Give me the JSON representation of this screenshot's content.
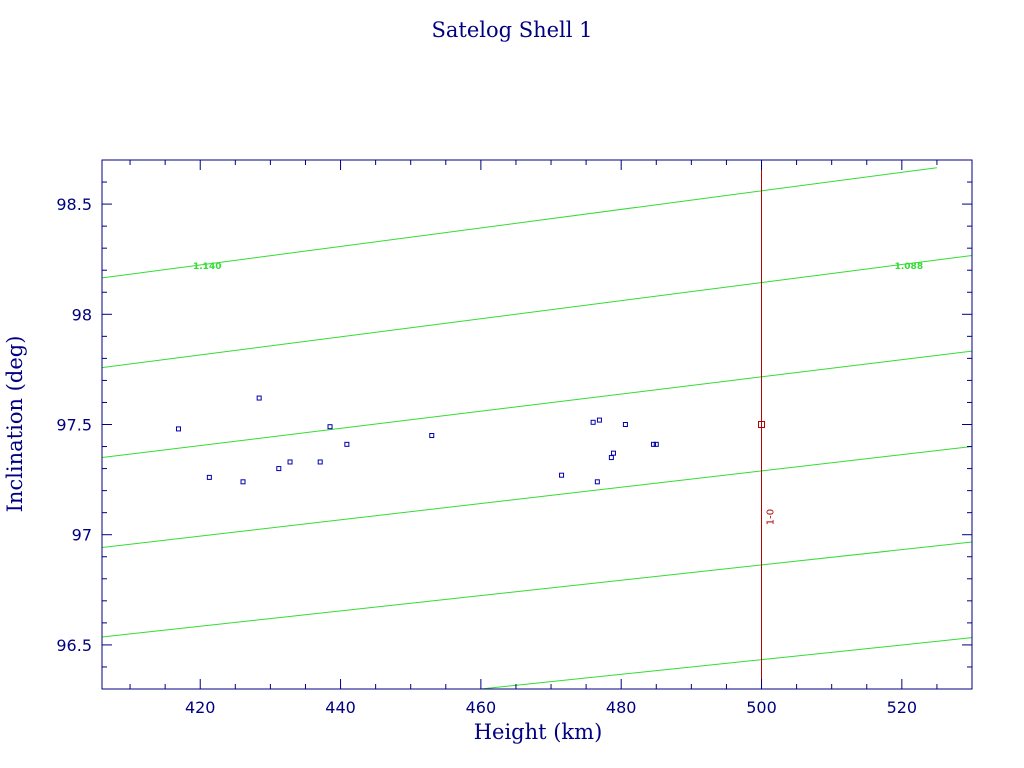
{
  "colors": {
    "axis": "#000080",
    "text": "#000080",
    "contour": "#33dd33",
    "points": "#0000aa",
    "reference": "#b00000"
  },
  "chart_data": {
    "type": "scatter",
    "title": "Satelog Shell 1",
    "xlabel": "Height (km)",
    "ylabel": "Inclination (deg)",
    "xlim": [
      406,
      530
    ],
    "ylim": [
      96.3,
      98.7
    ],
    "xticks": [
      420,
      440,
      460,
      480,
      500,
      520
    ],
    "yticks": [
      96.5,
      97,
      97.5,
      98,
      98.5
    ],
    "xtick_labels": [
      "420",
      "440",
      "460",
      "480",
      "500",
      "520"
    ],
    "ytick_labels": [
      "96.5",
      "97",
      "97.5",
      "98",
      "98.5"
    ],
    "grid": false,
    "points": [
      {
        "x": 416.9,
        "y": 97.48
      },
      {
        "x": 421.3,
        "y": 97.26
      },
      {
        "x": 426.1,
        "y": 97.24
      },
      {
        "x": 428.4,
        "y": 97.62
      },
      {
        "x": 431.2,
        "y": 97.3
      },
      {
        "x": 432.8,
        "y": 97.33
      },
      {
        "x": 437.1,
        "y": 97.33
      },
      {
        "x": 438.5,
        "y": 97.49
      },
      {
        "x": 440.9,
        "y": 97.41
      },
      {
        "x": 453.0,
        "y": 97.45
      },
      {
        "x": 471.5,
        "y": 97.27
      },
      {
        "x": 476.0,
        "y": 97.51
      },
      {
        "x": 476.6,
        "y": 97.24
      },
      {
        "x": 476.9,
        "y": 97.52
      },
      {
        "x": 478.6,
        "y": 97.35
      },
      {
        "x": 478.9,
        "y": 97.37
      },
      {
        "x": 480.6,
        "y": 97.5
      },
      {
        "x": 484.6,
        "y": 97.41
      },
      {
        "x": 485.0,
        "y": 97.41
      }
    ],
    "contours": [
      {
        "x": [
          406,
          525
        ],
        "y": [
          98.165,
          98.665
        ]
      },
      {
        "x": [
          406,
          530
        ],
        "y": [
          97.758,
          98.267
        ]
      },
      {
        "x": [
          406,
          530
        ],
        "y": [
          97.35,
          97.833
        ]
      },
      {
        "x": [
          406,
          530
        ],
        "y": [
          96.942,
          97.4
        ]
      },
      {
        "x": [
          406,
          530
        ],
        "y": [
          96.536,
          96.967
        ]
      },
      {
        "x": [
          460,
          530
        ],
        "y": [
          96.3,
          96.533
        ]
      }
    ],
    "contour_labels": [
      {
        "text": "1.140",
        "x": 421.0,
        "y": 98.22
      },
      {
        "text": "1.088",
        "x": 521.0,
        "y": 98.22
      }
    ],
    "reference": {
      "x": 500,
      "marker": {
        "x": 500,
        "y": 97.5
      },
      "label": {
        "text": "1-0",
        "x": 500.7,
        "y": 97.08
      }
    }
  }
}
